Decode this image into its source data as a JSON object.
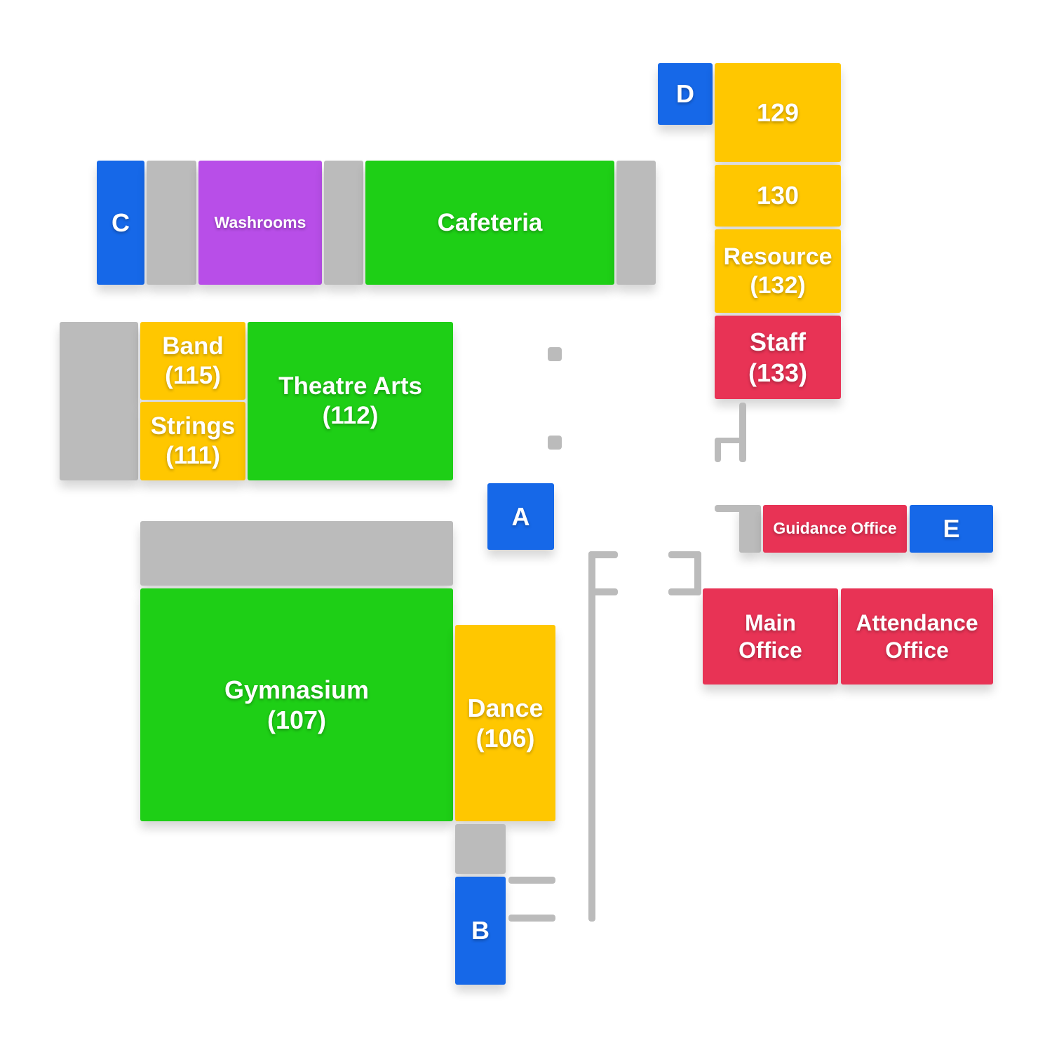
{
  "colors": {
    "green": "#1ecf16",
    "yellow": "#ffc700",
    "red": "#e83355",
    "blue": "#1668e8",
    "purple": "#b84ee8",
    "gray": "#bbbbbb"
  },
  "rooms": {
    "cafeteria": "Cafeteria",
    "washrooms": "Washrooms",
    "theatre_arts": "Theatre Arts\n(112)",
    "band": "Band\n(115)",
    "strings": "Strings\n(111)",
    "gymnasium": "Gymnasium\n(107)",
    "dance": "Dance\n(106)",
    "room_129": "129",
    "room_130": "130",
    "resource": "Resource\n(132)",
    "staff": "Staff\n(133)",
    "guidance_office": "Guidance Office",
    "main_office": "Main\nOffice",
    "attendance_office": "Attendance\nOffice"
  },
  "entrances": {
    "a": "A",
    "b": "B",
    "c": "C",
    "d": "D",
    "e": "E"
  }
}
